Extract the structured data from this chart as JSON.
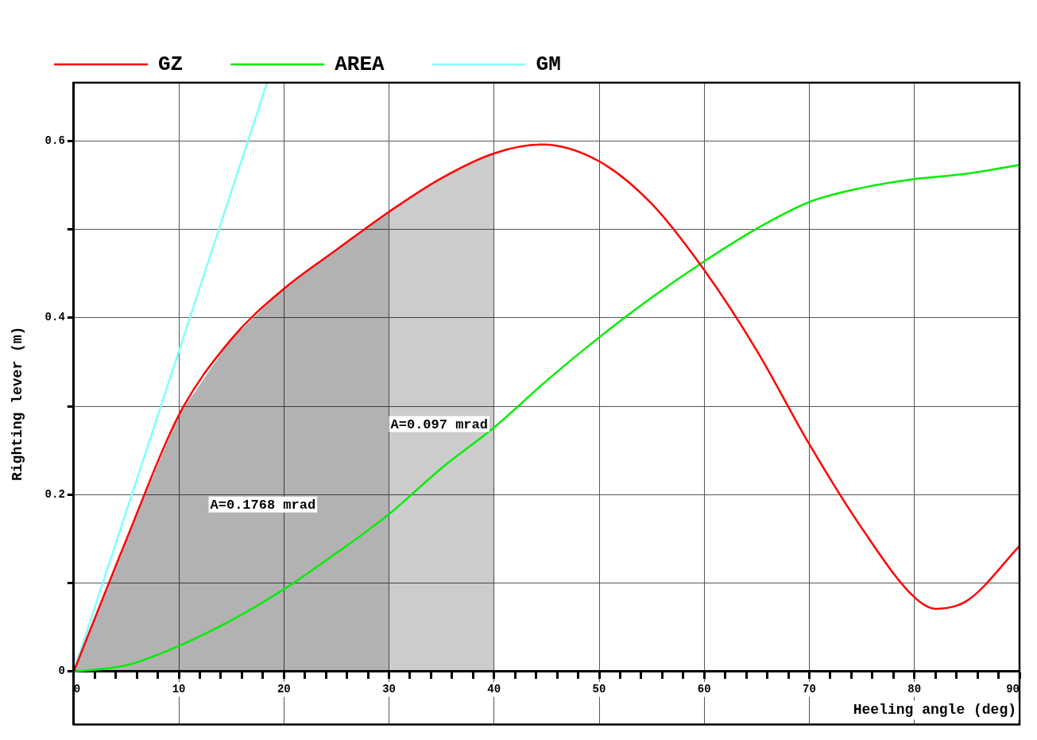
{
  "chart_data": {
    "type": "line",
    "xlabel": "Heeling angle (deg)",
    "ylabel": "Righting lever (m)",
    "xlim": [
      0,
      90
    ],
    "ylim": [
      -0.06,
      0.666
    ],
    "xticks": [
      0,
      {
        "value": 2,
        "label": null
      },
      {
        "value": 4,
        "label": null
      },
      {
        "value": 6,
        "label": null
      },
      {
        "value": 8,
        "label": null
      },
      10,
      {
        "value": 12,
        "label": null
      },
      {
        "value": 14,
        "label": null
      },
      {
        "value": 16,
        "label": null
      },
      {
        "value": 18,
        "label": null
      },
      20,
      {
        "value": 22,
        "label": null
      },
      {
        "value": 24,
        "label": null
      },
      {
        "value": 26,
        "label": null
      },
      {
        "value": 28,
        "label": null
      },
      30,
      {
        "value": 32,
        "label": null
      },
      {
        "value": 34,
        "label": null
      },
      {
        "value": 36,
        "label": null
      },
      {
        "value": 38,
        "label": null
      },
      40,
      {
        "value": 42,
        "label": null
      },
      {
        "value": 44,
        "label": null
      },
      {
        "value": 46,
        "label": null
      },
      {
        "value": 48,
        "label": null
      },
      50,
      {
        "value": 52,
        "label": null
      },
      {
        "value": 54,
        "label": null
      },
      {
        "value": 56,
        "label": null
      },
      {
        "value": 58,
        "label": null
      },
      60,
      {
        "value": 62,
        "label": null
      },
      {
        "value": 64,
        "label": null
      },
      {
        "value": 66,
        "label": null
      },
      {
        "value": 68,
        "label": null
      },
      70,
      {
        "value": 72,
        "label": null
      },
      {
        "value": 74,
        "label": null
      },
      {
        "value": 76,
        "label": null
      },
      {
        "value": 78,
        "label": null
      },
      80,
      {
        "value": 82,
        "label": null
      },
      {
        "value": 84,
        "label": null
      },
      {
        "value": 86,
        "label": null
      },
      {
        "value": 88,
        "label": null
      },
      90
    ],
    "yticks": [
      0,
      {
        "value": 0.1,
        "label": null
      },
      0.2,
      {
        "value": 0.3,
        "label": null
      },
      0.4,
      {
        "value": 0.5,
        "label": null
      },
      0.6
    ],
    "grid": true,
    "legend": "top left",
    "marker": "none",
    "line_style": "solid",
    "series": [
      {
        "name": "GZ",
        "color": "#ff0000",
        "x": [
          0,
          5,
          10,
          15,
          20,
          25,
          30,
          35,
          40,
          44.5,
          50,
          55,
          60,
          65,
          70,
          75,
          80,
          82,
          85,
          90
        ],
        "values": [
          0,
          0.149,
          0.29,
          0.376,
          0.433,
          0.477,
          0.52,
          0.558,
          0.586,
          0.596,
          0.577,
          0.529,
          0.454,
          0.363,
          0.257,
          0.162,
          0.084,
          0.071,
          0.08,
          0.142
        ]
      },
      {
        "name": "AREA",
        "color": "#00ee00",
        "x": [
          0,
          5,
          10,
          15,
          20,
          25,
          30,
          35,
          40,
          45,
          50,
          55,
          60,
          65,
          70,
          75,
          80,
          85,
          90
        ],
        "values": [
          0,
          0.007,
          0.029,
          0.058,
          0.093,
          0.134,
          0.178,
          0.23,
          0.276,
          0.329,
          0.378,
          0.423,
          0.464,
          0.501,
          0.531,
          0.547,
          0.557,
          0.563,
          0.573
        ]
      },
      {
        "name": "GM",
        "color": "#80ffff",
        "x": [
          0,
          18.4
        ],
        "values": [
          0,
          0.666
        ]
      }
    ],
    "bands": [
      {
        "axis": "x",
        "from": 0,
        "to": 30,
        "label": "A=0.1768 mrad",
        "color": "#000000"
      },
      {
        "axis": "x",
        "from": 30,
        "to": 40,
        "label": "A=0.097 mrad",
        "color": "#000000"
      }
    ]
  }
}
